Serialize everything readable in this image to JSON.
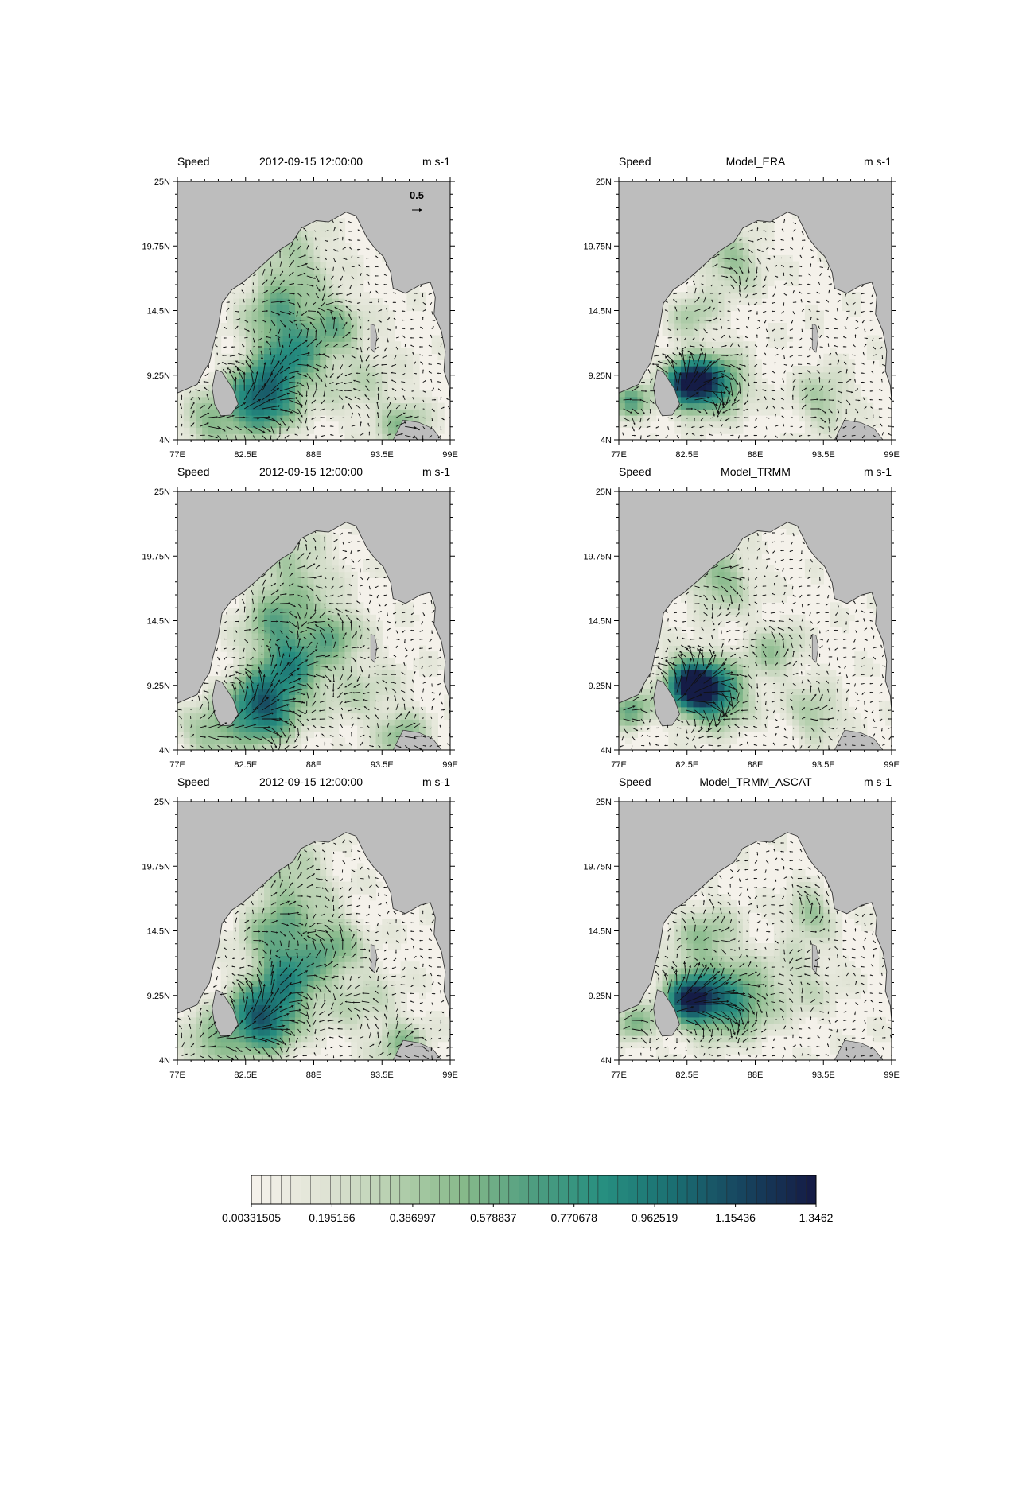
{
  "figure": {
    "colors": {
      "land": "#bdbdbd",
      "coast": "#333333",
      "palette": [
        "#f4f1ea",
        "#dfe3d4",
        "#b5cfae",
        "#86b98a",
        "#4e9d80",
        "#278f80",
        "#1b6f72",
        "#17455f",
        "#151c46"
      ]
    },
    "reference_vector": {
      "label": "0.5"
    },
    "panels": [
      {
        "left": "Speed",
        "center": "2012-09-15 12:00:00",
        "right": "m s-1",
        "variant": "obs"
      },
      {
        "left": "Speed",
        "center": "Model_ERA",
        "right": "m s-1",
        "variant": "era"
      },
      {
        "left": "Speed",
        "center": "2012-09-15 12:00:00",
        "right": "m s-1",
        "variant": "obs"
      },
      {
        "left": "Speed",
        "center": "Model_TRMM",
        "right": "m s-1",
        "variant": "trmm"
      },
      {
        "left": "Speed",
        "center": "2012-09-15 12:00:00",
        "right": "m s-1",
        "variant": "obs"
      },
      {
        "left": "Speed",
        "center": "Model_TRMM_ASCAT",
        "right": "m s-1",
        "variant": "ascat"
      }
    ],
    "axes": {
      "x_ticks": [
        "77E",
        "82.5E",
        "88E",
        "93.5E",
        "99E"
      ],
      "y_ticks": [
        "25N",
        "19.75N",
        "14.5N",
        "9.25N",
        "4N"
      ],
      "lon_range": [
        77,
        99
      ],
      "lat_range": [
        4,
        25
      ]
    },
    "colorbar": {
      "labels": [
        "0.00331505",
        "0.195156",
        "0.386997",
        "0.578837",
        "0.770678",
        "0.962519",
        "1.15436",
        "1.3462"
      ],
      "min": 0.00331505,
      "max": 1.3462,
      "levels": 57
    }
  }
}
